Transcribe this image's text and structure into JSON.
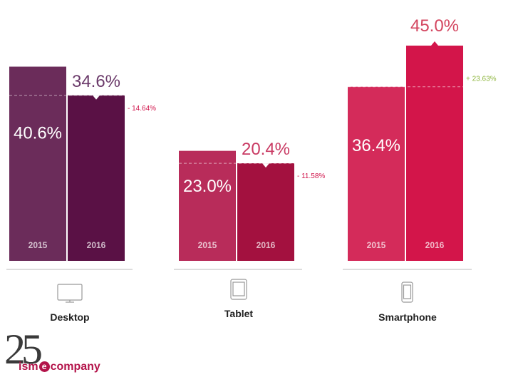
{
  "chart_data": {
    "type": "bar",
    "groups": [
      {
        "name": "Desktop",
        "icon": "desktop-icon",
        "bars": [
          {
            "year": "2015",
            "value": 40.6,
            "label": "40.6%",
            "color": "#6b2c5a"
          },
          {
            "year": "2016",
            "value": 34.6,
            "label": "34.6%",
            "color": "#5a1145"
          }
        ],
        "change": "- 14.64%",
        "change_color": "#d0134a"
      },
      {
        "name": "Tablet",
        "icon": "tablet-icon",
        "bars": [
          {
            "year": "2015",
            "value": 23.0,
            "label": "23.0%",
            "color": "#b82c5a"
          },
          {
            "year": "2016",
            "value": 20.4,
            "label": "20.4%",
            "color": "#a3113f"
          }
        ],
        "change": "- 11.58%",
        "change_color": "#d0134a"
      },
      {
        "name": "Smartphone",
        "icon": "smartphone-icon",
        "bars": [
          {
            "year": "2015",
            "value": 36.4,
            "label": "36.4%",
            "color": "#d42b5a"
          },
          {
            "year": "2016",
            "value": 45.0,
            "label": "45.0%",
            "color": "#d3154a"
          }
        ],
        "change": "+ 23.63%",
        "change_color": "#8db53c"
      }
    ],
    "ylim": [
      0,
      45.0
    ]
  },
  "logo": {
    "number": "25",
    "word_before": "ism",
    "word_e": "e",
    "word_after": "company",
    "color": "#b3134a"
  }
}
